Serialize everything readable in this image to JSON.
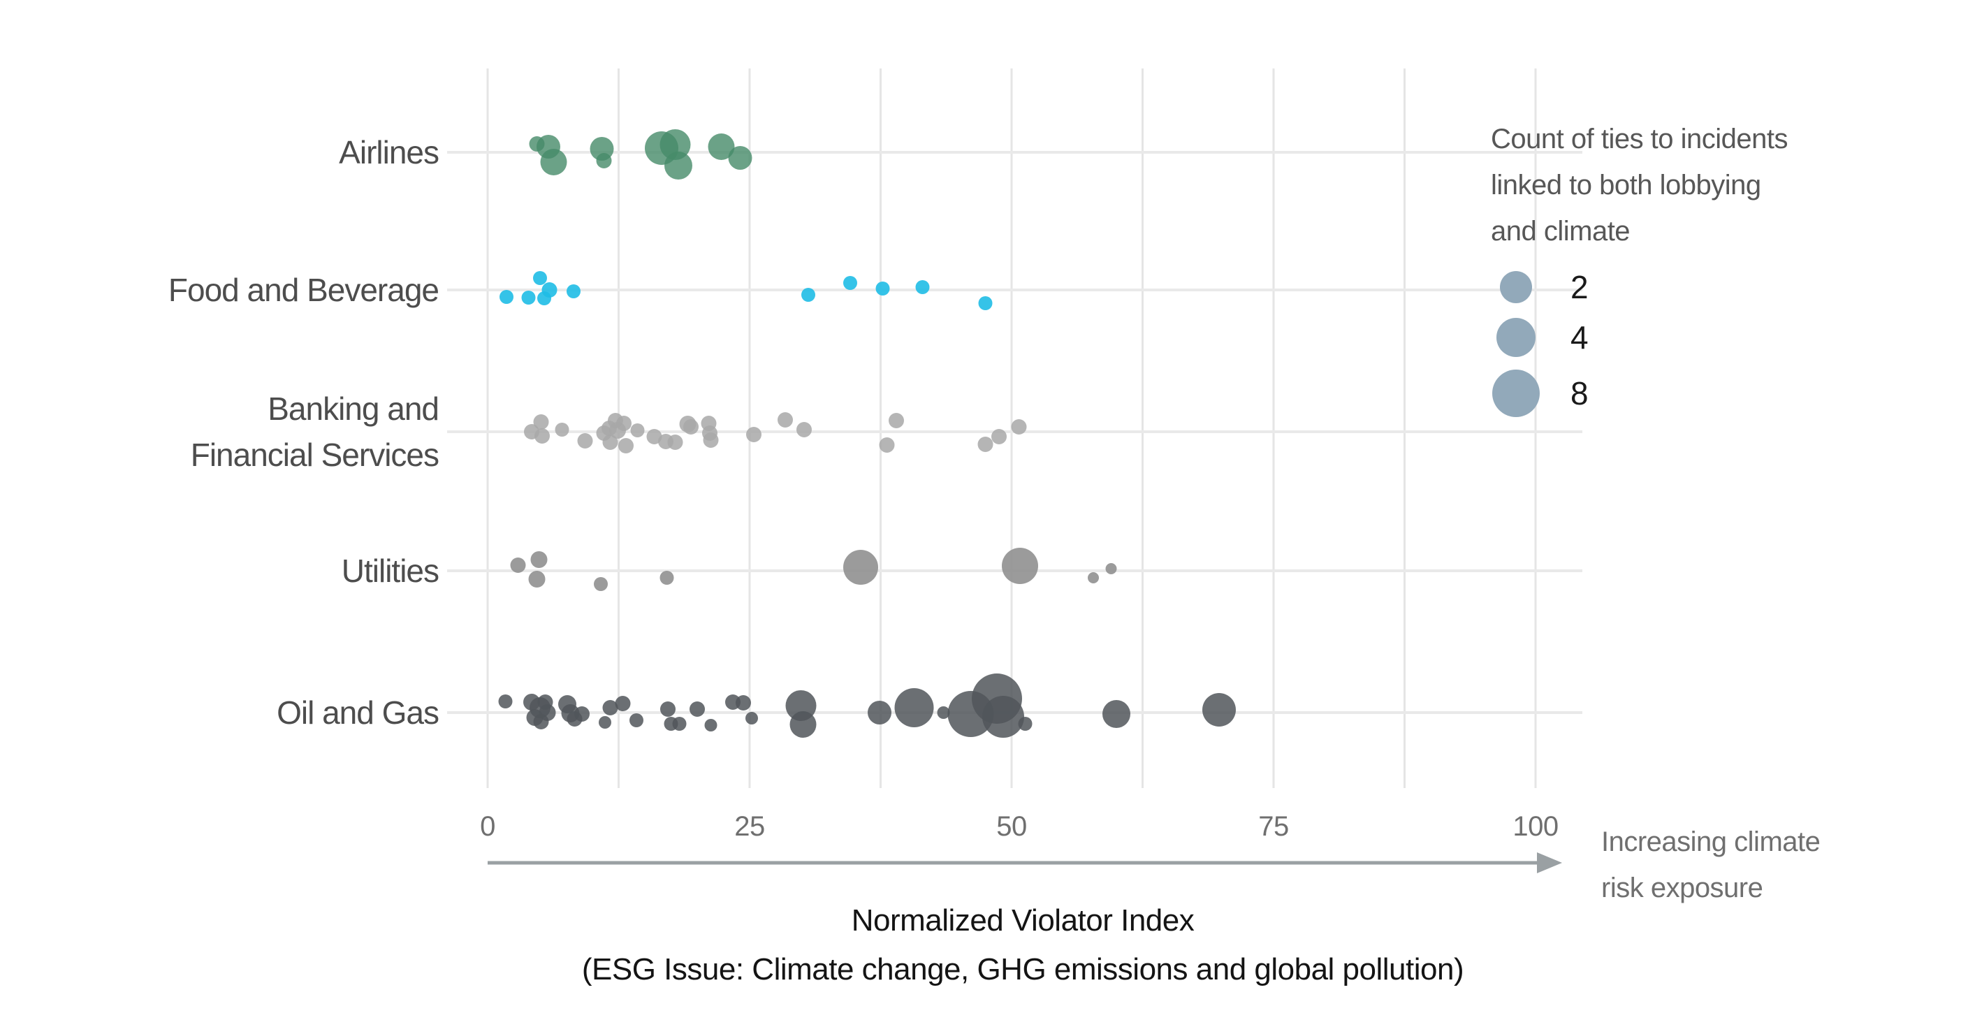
{
  "colors": {
    "background": "#ffffff",
    "vertical_gridline": "#e5e5e5",
    "row_line": "#e9e9e9",
    "arrow": "#9aa0a3",
    "legend_bubble": "#92a9ba",
    "airlines_bubble": "#468b69",
    "food_beverage_bubble": "#1fbde5",
    "banking_bubble": "#a8a8a8",
    "utilities_bubble": "#909090",
    "oil_gas_bubble": "#51565a"
  },
  "chart_data": {
    "type": "scatter",
    "subtype": "bubble-strip-plot",
    "title": "",
    "x_axis": {
      "label_line1": "Normalized Violator Index",
      "label_line2": "(ESG Issue: Climate change, GHG emissions and global pollution)",
      "range": [
        0,
        100
      ],
      "tick_values": [
        0,
        25,
        50,
        75,
        100
      ],
      "tick_labels": [
        "0",
        "25",
        "50",
        "75",
        "100"
      ],
      "minor_grid_step": 12.5,
      "grid": true,
      "arrow_annotation_lines": [
        "Increasing climate",
        "risk exposure"
      ]
    },
    "legend": {
      "position": "right",
      "title_lines": [
        "Count of ties to incidents",
        "linked to both lobbying",
        "and climate"
      ],
      "entries": [
        {
          "label": "2",
          "count": 2,
          "r": 23
        },
        {
          "label": "4",
          "count": 4,
          "r": 28
        },
        {
          "label": "8",
          "count": 8,
          "r": 34
        }
      ]
    },
    "point_format": [
      "x_value_normalized_violator_index",
      "y_jitter_px",
      "radius_px",
      "count_of_ties_estimate"
    ],
    "rows": [
      {
        "label_lines": [
          "Airlines"
        ],
        "color": "#468b69",
        "opacity": 0.8,
        "points": [
          [
            4.7,
            -12,
            11,
            1
          ],
          [
            5.8,
            -8,
            17,
            2
          ],
          [
            6.3,
            14,
            19,
            3
          ],
          [
            10.9,
            -5,
            17,
            2
          ],
          [
            11.1,
            12,
            11,
            1
          ],
          [
            16.6,
            -6,
            24,
            4
          ],
          [
            17.9,
            -11,
            22,
            3
          ],
          [
            18.2,
            19,
            20,
            3
          ],
          [
            22.3,
            -8,
            19,
            3
          ],
          [
            24.1,
            8,
            17,
            2
          ]
        ]
      },
      {
        "label_lines": [
          "Food and Beverage"
        ],
        "color": "#1fbde5",
        "opacity": 0.9,
        "points": [
          [
            1.8,
            10,
            10,
            1
          ],
          [
            3.9,
            11,
            10,
            1
          ],
          [
            5.0,
            -17,
            10,
            1
          ],
          [
            5.4,
            12,
            10,
            1
          ],
          [
            5.9,
            0,
            11,
            1
          ],
          [
            8.2,
            2,
            10,
            1
          ],
          [
            30.6,
            7,
            10,
            1
          ],
          [
            34.6,
            -10,
            10,
            1
          ],
          [
            37.7,
            -2,
            10,
            1
          ],
          [
            41.5,
            -4,
            10,
            1
          ],
          [
            47.5,
            19,
            10,
            1
          ]
        ]
      },
      {
        "label_lines": [
          "Banking and",
          "Financial Services"
        ],
        "color": "#a8a8a8",
        "opacity": 0.85,
        "points": [
          [
            4.2,
            0,
            11,
            1
          ],
          [
            5.1,
            -14,
            11,
            1
          ],
          [
            5.2,
            6,
            11,
            1
          ],
          [
            7.1,
            -3,
            10,
            1
          ],
          [
            9.3,
            13,
            11,
            1
          ],
          [
            11.1,
            2,
            11,
            1
          ],
          [
            11.6,
            -5,
            11,
            1
          ],
          [
            11.7,
            15,
            11,
            1
          ],
          [
            12.2,
            -16,
            11,
            1
          ],
          [
            12.4,
            -2,
            12,
            1
          ],
          [
            13.0,
            -12,
            11,
            1
          ],
          [
            13.2,
            20,
            11,
            1
          ],
          [
            14.3,
            -2,
            10,
            1
          ],
          [
            15.9,
            7,
            11,
            1
          ],
          [
            17.0,
            14,
            11,
            1
          ],
          [
            17.9,
            15,
            11,
            1
          ],
          [
            19.1,
            -11,
            12,
            1
          ],
          [
            19.4,
            -7,
            11,
            1
          ],
          [
            21.1,
            -12,
            11,
            1
          ],
          [
            21.2,
            2,
            11,
            1
          ],
          [
            21.3,
            12,
            11,
            1
          ],
          [
            25.4,
            4,
            11,
            1
          ],
          [
            28.4,
            -17,
            11,
            1
          ],
          [
            30.2,
            -3,
            11,
            1
          ],
          [
            38.1,
            19,
            11,
            1
          ],
          [
            39.0,
            -16,
            11,
            1
          ],
          [
            47.5,
            18,
            11,
            1
          ],
          [
            48.8,
            7,
            11,
            1
          ],
          [
            50.7,
            -7,
            11,
            1
          ]
        ]
      },
      {
        "label_lines": [
          "Utilities"
        ],
        "color": "#909090",
        "opacity": 0.9,
        "points": [
          [
            2.9,
            -8,
            11,
            1
          ],
          [
            4.7,
            12,
            12,
            1
          ],
          [
            4.9,
            -16,
            12,
            1
          ],
          [
            10.8,
            19,
            10,
            1
          ],
          [
            17.1,
            10,
            10,
            1
          ],
          [
            35.6,
            -5,
            25,
            4
          ],
          [
            50.8,
            -7,
            26,
            4
          ],
          [
            57.8,
            10,
            8,
            1
          ],
          [
            59.5,
            -3,
            8,
            1
          ]
        ]
      },
      {
        "label_lines": [
          "Oil and Gas"
        ],
        "color": "#51565a",
        "opacity": 0.85,
        "points": [
          [
            1.7,
            -16,
            10,
            1
          ],
          [
            4.2,
            -15,
            12,
            1
          ],
          [
            4.5,
            7,
            12,
            1
          ],
          [
            5.0,
            -7,
            15,
            2
          ],
          [
            5.1,
            13,
            11,
            1
          ],
          [
            5.5,
            -15,
            11,
            1
          ],
          [
            5.7,
            0,
            12,
            1
          ],
          [
            7.6,
            -12,
            13,
            2
          ],
          [
            7.9,
            1,
            13,
            2
          ],
          [
            8.3,
            9,
            11,
            1
          ],
          [
            9.0,
            2,
            11,
            1
          ],
          [
            11.2,
            14,
            9,
            1
          ],
          [
            11.7,
            -7,
            11,
            1
          ],
          [
            12.9,
            -13,
            11,
            1
          ],
          [
            14.2,
            11,
            10,
            1
          ],
          [
            17.2,
            -5,
            11,
            1
          ],
          [
            17.5,
            16,
            10,
            1
          ],
          [
            18.3,
            16,
            10,
            1
          ],
          [
            20.0,
            -5,
            11,
            1
          ],
          [
            21.3,
            18,
            9,
            1
          ],
          [
            23.4,
            -15,
            11,
            1
          ],
          [
            24.4,
            -14,
            11,
            1
          ],
          [
            25.2,
            8,
            9,
            1
          ],
          [
            29.9,
            -10,
            22,
            3
          ],
          [
            30.1,
            17,
            19,
            3
          ],
          [
            37.4,
            0,
            17,
            2
          ],
          [
            40.7,
            -7,
            28,
            4
          ],
          [
            43.5,
            0,
            9,
            1
          ],
          [
            46.1,
            2,
            33,
            6
          ],
          [
            48.6,
            -20,
            36,
            8
          ],
          [
            49.2,
            6,
            30,
            5
          ],
          [
            51.3,
            16,
            10,
            1
          ],
          [
            60.0,
            2,
            20,
            3
          ],
          [
            69.8,
            -4,
            24,
            4
          ]
        ]
      }
    ]
  }
}
